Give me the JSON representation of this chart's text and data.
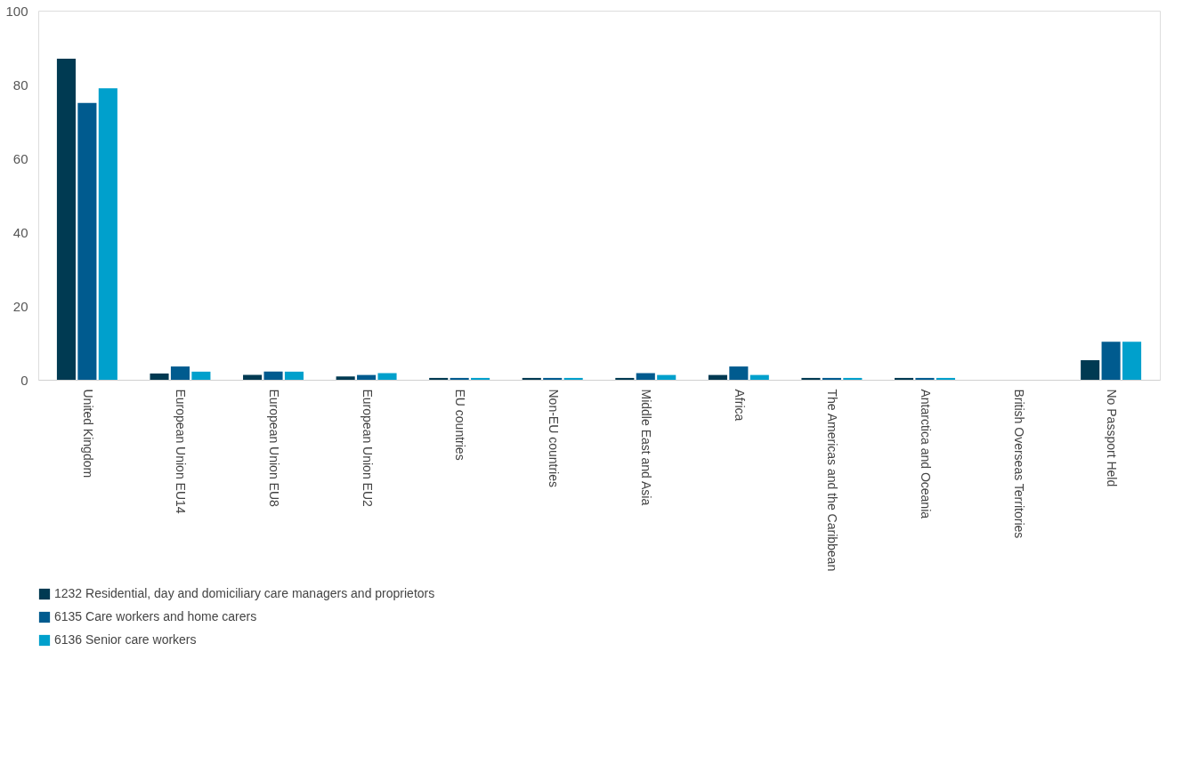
{
  "chart_data": {
    "type": "bar",
    "categories": [
      "United Kingdom",
      "European Union EU14",
      "European Union EU8",
      "European Union EU2",
      "EU countries",
      "Non-EU countries",
      "Middle East and Asia",
      "Africa",
      "The Americas and the Caribbean",
      "Antarctica and Oceania",
      "British Overseas Territories",
      "No Passport Held"
    ],
    "series": [
      {
        "name": "1232 Residential, day and domiciliary care managers and proprietors",
        "color": "#003a52",
        "values": [
          87,
          1.7,
          1.3,
          0.9,
          0.5,
          0.5,
          0.5,
          1.3,
          0.5,
          0.5,
          null,
          5.3
        ]
      },
      {
        "name": "6135 Care workers and home carers",
        "color": "#005b8f",
        "values": [
          75,
          3.6,
          2.2,
          1.3,
          0.5,
          0.5,
          1.8,
          3.6,
          0.5,
          0.5,
          null,
          10.3
        ]
      },
      {
        "name": "6136 Senior care workers",
        "color": "#00a0cc",
        "values": [
          79,
          2.2,
          2.2,
          1.8,
          0.5,
          0.5,
          1.3,
          1.3,
          0.5,
          0.5,
          null,
          10.3
        ]
      }
    ],
    "ylim": [
      0,
      100
    ],
    "yticks": [
      0,
      20,
      40,
      60,
      80,
      100
    ],
    "grid": false,
    "legend": "bottom"
  }
}
